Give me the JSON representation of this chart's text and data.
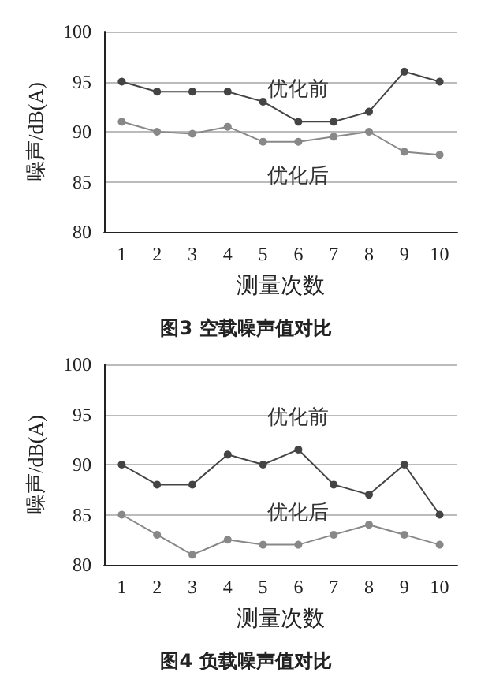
{
  "chart_data": [
    {
      "type": "line",
      "title": "图3 空载噪声值对比",
      "xlabel": "测量次数",
      "ylabel": "噪声/dB(A)",
      "categories": [
        "1",
        "2",
        "3",
        "4",
        "5",
        "6",
        "7",
        "8",
        "9",
        "10"
      ],
      "series": [
        {
          "name": "优化前",
          "color": "#444444",
          "values": [
            95,
            94,
            94,
            94,
            93,
            91,
            91,
            92,
            96,
            95
          ]
        },
        {
          "name": "优化后",
          "color": "#888888",
          "values": [
            91,
            90,
            89.8,
            90.5,
            89,
            89,
            89.5,
            90,
            88,
            87.7
          ]
        }
      ],
      "ylim": [
        80,
        100
      ],
      "yticks": [
        80,
        85,
        90,
        95,
        100
      ],
      "grid": "y",
      "marker": "circle",
      "line_style": "solid"
    },
    {
      "type": "line",
      "title": "图4 负载噪声值对比",
      "xlabel": "测量次数",
      "ylabel": "噪声/dB(A)",
      "categories": [
        "1",
        "2",
        "3",
        "4",
        "5",
        "6",
        "7",
        "8",
        "9",
        "10"
      ],
      "series": [
        {
          "name": "优化前",
          "color": "#444444",
          "values": [
            90,
            88,
            88,
            91,
            90,
            91.5,
            88,
            87,
            90,
            85
          ]
        },
        {
          "name": "优化后",
          "color": "#888888",
          "values": [
            85,
            83,
            81,
            82.5,
            82,
            82,
            83,
            84,
            83,
            82
          ]
        }
      ],
      "ylim": [
        80,
        100
      ],
      "yticks": [
        80,
        85,
        90,
        95,
        100
      ],
      "grid": "y",
      "marker": "circle",
      "line_style": "solid"
    }
  ]
}
